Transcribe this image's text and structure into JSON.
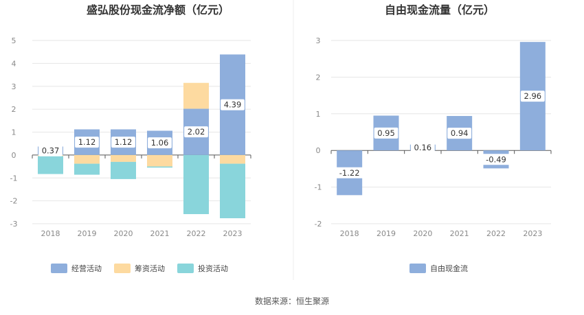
{
  "source": "数据来源：恒生聚源",
  "chart_data": [
    {
      "type": "bar",
      "stacked": true,
      "title": "盛弘股份现金流净额（亿元）",
      "categories": [
        "2018",
        "2019",
        "2020",
        "2021",
        "2022",
        "2023"
      ],
      "ylim": [
        -3,
        5
      ],
      "yticks": [
        5,
        4,
        3,
        2,
        1,
        0,
        -1,
        -2,
        -3
      ],
      "grid": true,
      "series": [
        {
          "name": "经营活动",
          "color": "#8eaedc",
          "values": [
            0.37,
            1.12,
            1.12,
            1.06,
            2.02,
            4.39
          ]
        },
        {
          "name": "筹资活动",
          "color": "#fddaa0",
          "values": [
            -0.05,
            -0.38,
            -0.3,
            -0.5,
            1.13,
            -0.38
          ]
        },
        {
          "name": "投资活动",
          "color": "#89d5db",
          "values": [
            -0.78,
            -0.48,
            -0.75,
            -0.05,
            -2.58,
            -2.38
          ]
        }
      ],
      "labels": [
        "0.37",
        "1.12",
        "1.12",
        "1.06",
        "2.02",
        "4.39"
      ],
      "legend": "bottom-center"
    },
    {
      "type": "bar",
      "title": "自由现金流量（亿元）",
      "categories": [
        "2018",
        "2019",
        "2020",
        "2021",
        "2022",
        "2023"
      ],
      "ylim": [
        -2,
        3
      ],
      "yticks": [
        3,
        2,
        1,
        0,
        -1,
        -2
      ],
      "grid": true,
      "series": [
        {
          "name": "自由现金流",
          "color": "#8eaedc",
          "values": [
            -1.22,
            0.95,
            0.16,
            0.94,
            -0.49,
            2.96
          ]
        }
      ],
      "labels": [
        "-1.22",
        "0.95",
        "0.16",
        "0.94",
        "-0.49",
        "2.96"
      ],
      "legend": "bottom-center"
    }
  ]
}
